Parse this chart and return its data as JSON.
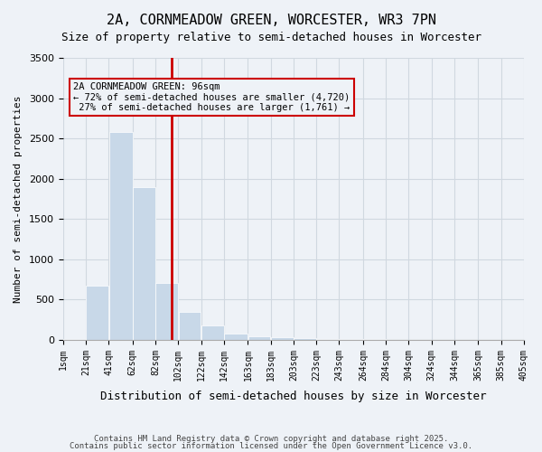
{
  "title_line1": "2A, CORNMEADOW GREEN, WORCESTER, WR3 7PN",
  "title_line2": "Size of property relative to semi-detached houses in Worcester",
  "xlabel": "Distribution of semi-detached houses by size in Worcester",
  "ylabel": "Number of semi-detached properties",
  "property_size": 96,
  "property_label": "2A CORNMEADOW GREEN: 96sqm",
  "pct_smaller": 72,
  "count_smaller": 4720,
  "pct_larger": 27,
  "count_larger": 1761,
  "bin_edges": [
    1,
    21,
    41,
    62,
    82,
    102,
    122,
    142,
    163,
    183,
    203,
    223,
    243,
    264,
    284,
    304,
    324,
    344,
    365,
    385,
    405
  ],
  "bar_heights": [
    5,
    670,
    2580,
    1900,
    710,
    350,
    175,
    80,
    45,
    30,
    20,
    12,
    8,
    5,
    3,
    2,
    1,
    1,
    0,
    0
  ],
  "bar_color_left": "#c8d8e8",
  "bar_color_right": "#c8d8e8",
  "marker_color": "#cc0000",
  "annotation_box_color": "#cc0000",
  "grid_color": "#d0d8e0",
  "background_color": "#eef2f7",
  "ylim": [
    0,
    3500
  ],
  "yticks": [
    0,
    500,
    1000,
    1500,
    2000,
    2500,
    3000,
    3500
  ],
  "footnote_line1": "Contains HM Land Registry data © Crown copyright and database right 2025.",
  "footnote_line2": "Contains public sector information licensed under the Open Government Licence v3.0."
}
